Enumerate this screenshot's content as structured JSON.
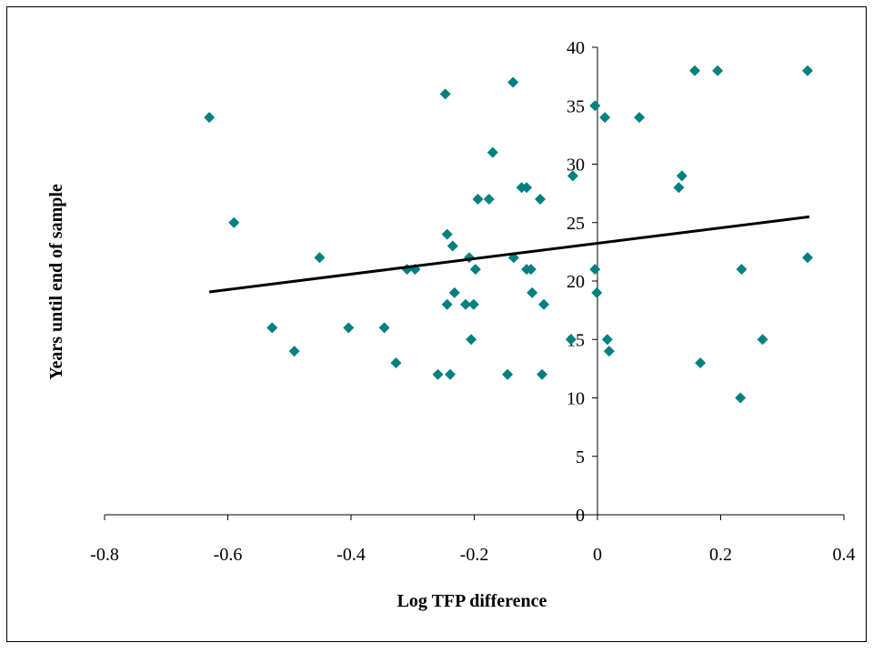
{
  "chart_data": {
    "type": "scatter",
    "x_label": "Log TFP difference",
    "y_label": "Years until end of sample",
    "xlim": [
      -0.8,
      0.4
    ],
    "xticks": [
      -0.8,
      -0.6,
      -0.4,
      -0.2,
      0,
      0.2,
      0.4
    ],
    "ylim": [
      0,
      40
    ],
    "yticks": [
      0,
      5,
      10,
      15,
      20,
      25,
      30,
      35,
      40
    ],
    "series": [
      {
        "color": "#008080",
        "x": [
          -0.63,
          -0.59,
          -0.528,
          -0.492,
          -0.451,
          -0.404,
          -0.346,
          -0.327,
          -0.309,
          -0.296,
          -0.259,
          -0.247,
          -0.244,
          -0.244,
          -0.239,
          -0.235,
          -0.232,
          -0.214,
          -0.208,
          -0.205,
          -0.201,
          -0.198,
          -0.194,
          -0.176,
          -0.17,
          -0.146,
          -0.137,
          -0.136,
          -0.123,
          -0.115,
          -0.115,
          -0.108,
          -0.106,
          -0.093,
          -0.09,
          -0.087,
          -0.04,
          -0.043,
          -0.004,
          -0.004,
          -0.001,
          0.012,
          0.016,
          0.019,
          0.068,
          0.132,
          0.137,
          0.158,
          0.167,
          0.195,
          0.232,
          0.234,
          0.268,
          0.341,
          0.341
        ],
        "values": [
          34,
          25,
          16,
          14,
          22,
          16,
          16,
          13,
          21,
          21,
          12,
          36,
          24,
          18,
          12,
          23,
          19,
          18,
          22,
          15,
          18,
          21,
          27,
          27,
          31,
          12,
          37,
          22,
          28,
          28,
          21,
          21,
          19,
          27,
          12,
          18,
          29,
          15,
          35,
          21,
          19,
          34,
          15,
          14,
          34,
          28,
          29,
          38,
          13,
          38,
          10,
          21,
          15,
          38,
          22
        ]
      }
    ],
    "trendline": {
      "color": "#000000",
      "x": [
        -0.63,
        0.344
      ],
      "values": [
        19.07,
        25.5
      ]
    }
  }
}
